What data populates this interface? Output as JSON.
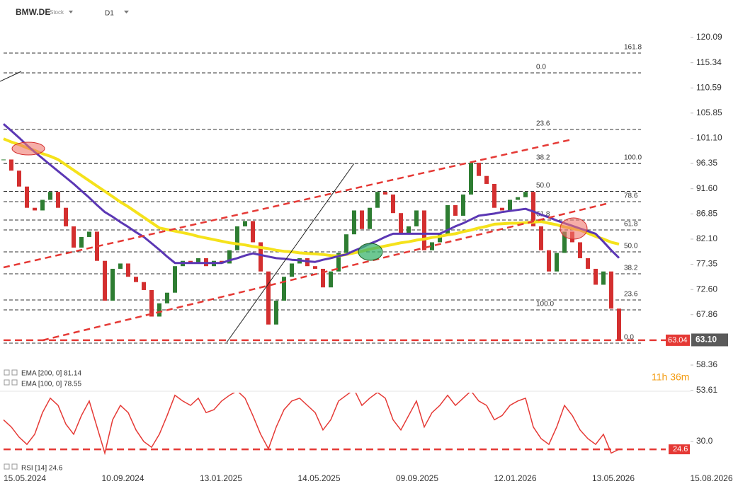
{
  "header": {
    "symbol": "BMW.DE",
    "kind": "Stock",
    "timeframe": "D1"
  },
  "chart_data": {
    "type": "candlestick",
    "up_color": "#2e7d32",
    "down_color": "#d32f2f",
    "close": [
      97.1,
      95.0,
      92.0,
      88.0,
      87.5,
      89.5,
      91.0,
      88.0,
      84.5,
      80.5,
      82.5,
      83.5,
      78.0,
      70.5,
      76.5,
      77.5,
      75.0,
      74.0,
      72.5,
      67.5,
      70.0,
      72.0,
      77.0,
      78.0,
      77.5,
      78.5,
      77.0,
      78.0,
      77.5,
      80.0,
      84.5,
      85.5,
      81.5,
      76.0,
      66.0,
      70.5,
      75.0,
      77.5,
      78.5,
      77.0,
      76.5,
      73.0,
      76.0,
      79.5,
      83.0,
      87.5,
      84.0,
      88.0,
      91.0,
      90.5,
      87.0,
      83.0,
      84.5,
      87.5,
      80.0,
      81.5,
      83.0,
      88.5,
      86.5,
      90.5,
      96.5,
      94.0,
      92.5,
      88.0,
      87.5,
      89.5,
      90.0,
      91.0,
      84.5,
      80.0,
      76.0,
      79.5,
      83.5,
      81.5,
      78.5,
      76.5,
      73.5,
      76.0,
      69.0,
      63.1
    ],
    "series": [
      {
        "name": "EMA [200, 0] 81.14",
        "color": "#f5e21b",
        "width": 4,
        "values": [
          101.0,
          100.4,
          99.9,
          99.3,
          98.8,
          98.2,
          97.7,
          97.1,
          96.1,
          95.1,
          94.1,
          93.1,
          92.1,
          91.1,
          90.1,
          89.1,
          88.2,
          87.2,
          86.2,
          85.2,
          84.2,
          83.9,
          83.6,
          83.3,
          83.0,
          82.6,
          82.3,
          82.0,
          81.7,
          81.4,
          81.2,
          81.0,
          80.7,
          80.5,
          80.3,
          80.0,
          79.8,
          79.7,
          79.5,
          79.4,
          79.3,
          79.2,
          79.0,
          78.9,
          79.2,
          79.5,
          79.8,
          80.2,
          80.5,
          80.8,
          81.1,
          81.4,
          81.6,
          81.9,
          82.1,
          82.4,
          82.6,
          82.9,
          83.1,
          83.5,
          83.8,
          84.2,
          84.5,
          84.9,
          85.0,
          85.1,
          85.1,
          85.2,
          85.3,
          85.4,
          85.1,
          84.8,
          84.4,
          84.1,
          83.8,
          83.2,
          82.6,
          82.1,
          81.5,
          81.14
        ]
      },
      {
        "name": "EMA [100, 0] 78.55",
        "color": "#5b37b4",
        "width": 3,
        "values": [
          103.8,
          102.5,
          101.2,
          99.8,
          98.5,
          97.3,
          96.1,
          94.9,
          93.7,
          92.5,
          91.2,
          89.9,
          88.5,
          87.2,
          86.3,
          85.3,
          84.4,
          83.4,
          82.5,
          81.3,
          80.1,
          78.8,
          77.6,
          77.6,
          77.6,
          77.6,
          77.6,
          77.6,
          77.6,
          78.1,
          78.5,
          79.0,
          79.4,
          79.1,
          78.8,
          78.5,
          78.4,
          78.2,
          78.1,
          77.9,
          77.8,
          78.2,
          78.5,
          78.9,
          79.2,
          79.9,
          80.5,
          81.2,
          81.8,
          82.5,
          83.1,
          83.1,
          83.1,
          83.1,
          83.1,
          83.1,
          83.1,
          83.8,
          84.5,
          85.1,
          85.8,
          86.5,
          86.7,
          86.9,
          87.2,
          87.4,
          87.6,
          87.8,
          87.3,
          86.7,
          86.2,
          85.6,
          85.1,
          84.6,
          84.1,
          83.6,
          83.1,
          81.6,
          80.0,
          78.55
        ]
      }
    ],
    "ylim": [
      53.16,
      127.16
    ],
    "yticks": [
      120.09,
      115.34,
      110.59,
      105.85,
      {
        "value": 101.1,
        "label": "101.10"
      },
      96.35,
      {
        "value": 91.6,
        "label": "91.60"
      },
      86.85,
      {
        "value": 82.1,
        "label": "82.10"
      },
      77.35,
      {
        "value": 72.6,
        "label": "72.60"
      },
      67.86,
      58.36,
      53.61
    ],
    "last_price": {
      "value": 63.1,
      "label": "63.10"
    },
    "level_line": {
      "value": 63.04,
      "label": "63.04"
    },
    "fibonacci": [
      {
        "levels": [
          {
            "label": "0.0",
            "value": 113.42
          },
          {
            "label": "23.6",
            "value": 102.76
          },
          {
            "label": "38.2",
            "value": 96.35
          },
          {
            "label": "50.0",
            "value": 91.09
          },
          {
            "label": "61.8",
            "value": 85.69
          },
          {
            "label": "100.0",
            "value": 68.76
          }
        ]
      },
      {
        "levels": [
          {
            "label": "161.8",
            "value": 117.16
          },
          {
            "label": "100.0",
            "value": 96.35
          },
          {
            "label": "78.6",
            "value": 89.16
          },
          {
            "label": "61.8",
            "value": 83.82
          },
          {
            "label": "50.0",
            "value": 79.69
          },
          {
            "label": "38.2",
            "value": 75.56
          },
          {
            "label": "23.6",
            "value": 70.63
          },
          {
            "label": "0.0",
            "value": 62.49
          }
        ]
      }
    ],
    "x_labels": [
      "15.05.2024",
      "10.09.2024",
      "13.01.2025",
      "14.05.2025",
      "09.09.2025",
      "12.01.2026",
      "13.05.2026",
      "15.08.2026"
    ],
    "countdown": "11h 36m",
    "rsi": {
      "name": "RSI [14] 24.6",
      "color": "#e53935",
      "ylim": [
        17.3,
        63.8
      ],
      "yticks": [
        {
          "value": 30,
          "label": "30.0"
        }
      ],
      "level": {
        "value": 24.6,
        "label": "24.6"
      },
      "values": [
        45,
        40,
        33,
        28,
        35,
        50,
        60,
        55,
        42,
        35,
        48,
        58,
        40,
        22,
        45,
        55,
        50,
        38,
        30,
        26,
        35,
        48,
        62,
        58,
        55,
        60,
        50,
        52,
        58,
        62,
        65,
        60,
        48,
        35,
        25,
        40,
        52,
        58,
        60,
        55,
        50,
        38,
        45,
        58,
        62,
        66,
        55,
        60,
        64,
        60,
        45,
        38,
        48,
        58,
        40,
        50,
        55,
        62,
        55,
        60,
        65,
        58,
        55,
        45,
        48,
        55,
        58,
        60,
        40,
        32,
        28,
        40,
        55,
        48,
        38,
        32,
        28,
        35,
        22,
        24.6
      ]
    }
  }
}
